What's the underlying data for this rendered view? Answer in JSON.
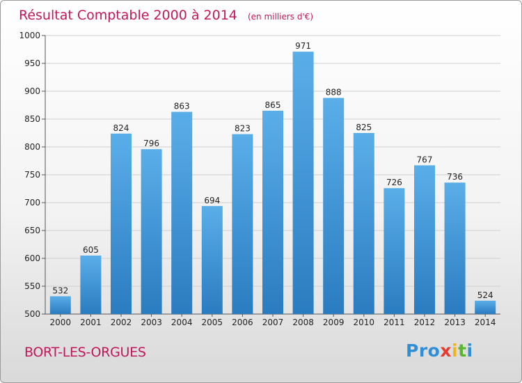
{
  "chart_data": {
    "type": "bar",
    "title": "Résultat Comptable 2000 à 2014",
    "subtitle": "(en milliers d'€)",
    "categories": [
      "2000",
      "2001",
      "2002",
      "2003",
      "2004",
      "2005",
      "2006",
      "2007",
      "2008",
      "2009",
      "2010",
      "2011",
      "2012",
      "2013",
      "2014"
    ],
    "values": [
      532,
      605,
      824,
      796,
      863,
      694,
      823,
      865,
      971,
      888,
      825,
      726,
      767,
      736,
      524
    ],
    "ylim": [
      500,
      1000
    ],
    "yticks": [
      500,
      550,
      600,
      650,
      700,
      750,
      800,
      850,
      900,
      950,
      1000
    ],
    "grid": true,
    "bar_color_top": "#5aaee8",
    "bar_color_bottom": "#2a7cc0",
    "title_color": "#c0185a"
  },
  "footer": {
    "town": "BORT-LES-ORGUES",
    "logo_letters": [
      {
        "ch": "P",
        "color": "#2e8fd6"
      },
      {
        "ch": "r",
        "color": "#2e8fd6"
      },
      {
        "ch": "o",
        "color": "#2e8fd6"
      },
      {
        "ch": "x",
        "color": "#e63b2e"
      },
      {
        "ch": "i",
        "color": "#f2b418"
      },
      {
        "ch": "t",
        "color": "#5bb530"
      },
      {
        "ch": "i",
        "color": "#2e8fd6"
      }
    ]
  }
}
